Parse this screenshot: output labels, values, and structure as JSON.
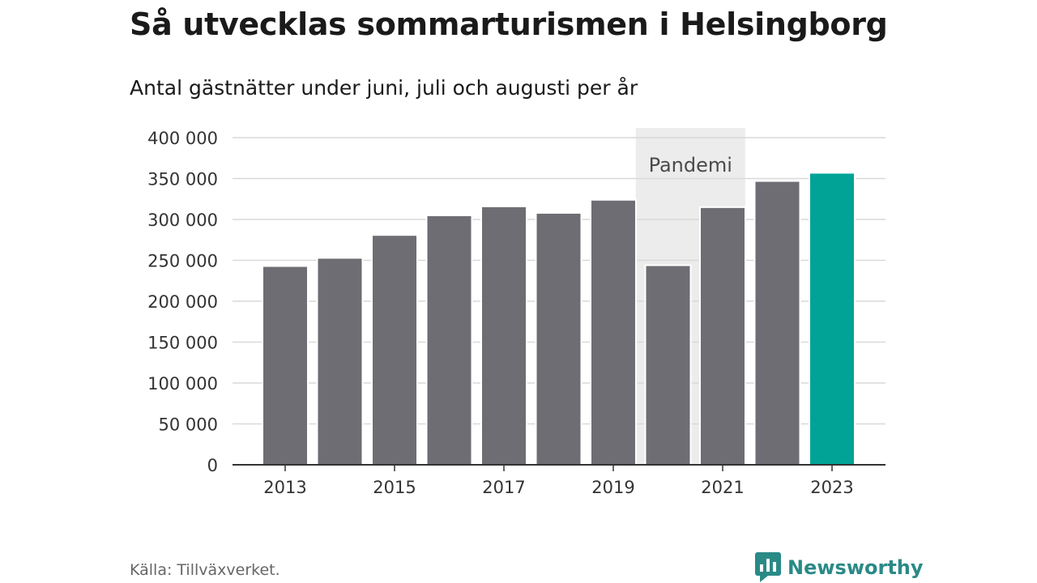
{
  "title": "Så utvecklas sommarturismen i Helsingborg",
  "subtitle": "Antal gästnätter under juni, juli och augusti per år",
  "source": "Källa: Tillväxverket.",
  "brand": {
    "name": "Newsworthy",
    "icon": "newsworthy-logo-icon"
  },
  "colors": {
    "bar": "#6e6d73",
    "highlight": "#00a396",
    "band": "#ececec",
    "grid": "#d9d9d9",
    "axis": "#333333",
    "brand": "#2a8a86"
  },
  "chart_data": {
    "type": "bar",
    "categories": [
      "2013",
      "2014",
      "2015",
      "2016",
      "2017",
      "2018",
      "2019",
      "2020",
      "2021",
      "2022",
      "2023"
    ],
    "values": [
      243000,
      253000,
      281000,
      305000,
      316000,
      308000,
      324000,
      244000,
      315000,
      347000,
      357000
    ],
    "highlight_index": 10,
    "x_tick_labels": [
      "2013",
      "2015",
      "2017",
      "2019",
      "2021",
      "2023"
    ],
    "ylim": [
      0,
      400000
    ],
    "y_ticks": [
      0,
      50000,
      100000,
      150000,
      200000,
      250000,
      300000,
      350000,
      400000
    ],
    "y_tick_labels": [
      "0",
      "50 000",
      "100 000",
      "150 000",
      "200 000",
      "250 000",
      "300 000",
      "350 000",
      "400 000"
    ],
    "grid": true,
    "annotation": {
      "label": "Pandemi",
      "from": "2020",
      "to": "2021"
    }
  }
}
